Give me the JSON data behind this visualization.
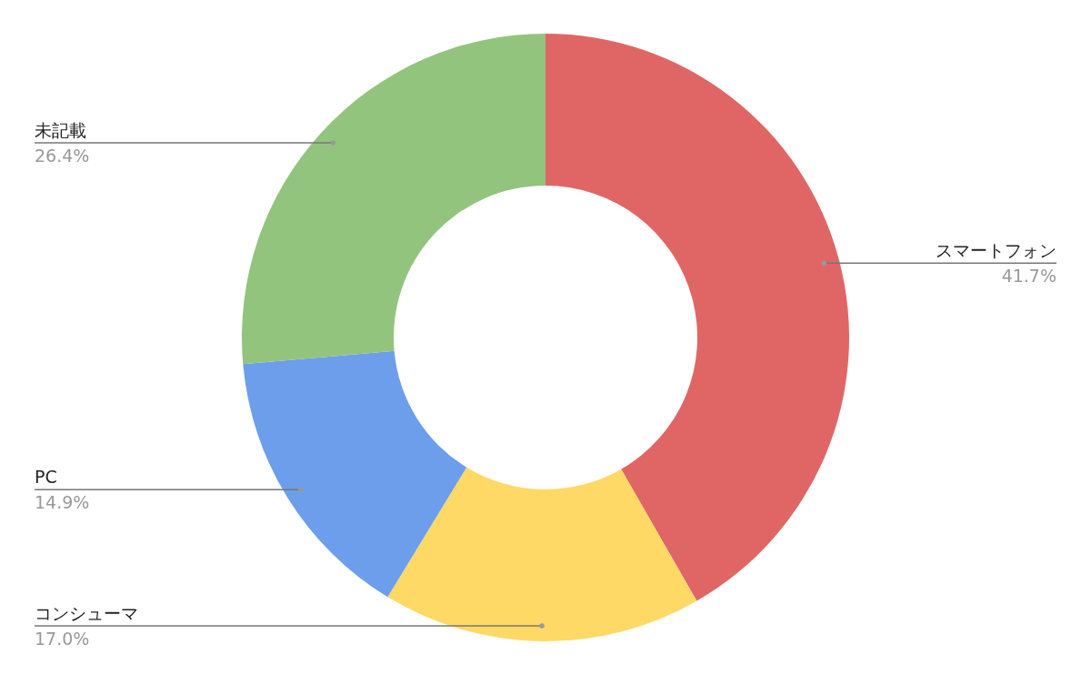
{
  "chart_data": {
    "type": "donut",
    "categories": [
      "スマートフォン",
      "コンシューマ",
      "PC",
      "未記載"
    ],
    "values": [
      41.7,
      17.0,
      14.9,
      26.4
    ],
    "colors": [
      "#e06666",
      "#ffd966",
      "#6d9eeb",
      "#93c47d"
    ],
    "value_labels": [
      "41.7%",
      "17.0%",
      "14.9%",
      "26.4%"
    ]
  }
}
